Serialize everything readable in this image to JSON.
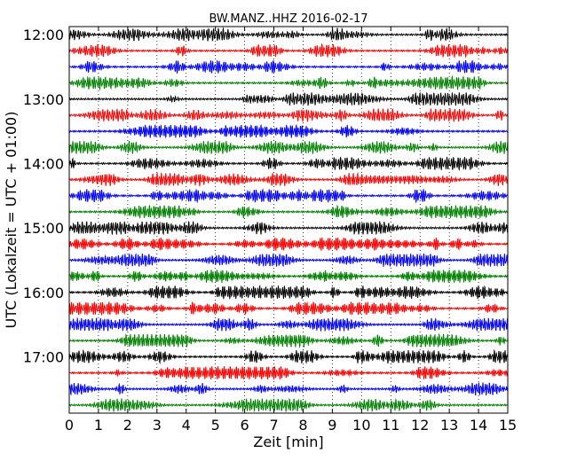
{
  "chart_data": {
    "type": "line",
    "title": "BW.MANZ..HHZ 2016-02-17",
    "xlabel": "Zeit  [min]",
    "ylabel": "UTC (Lokalzeit = UTC + 01:00)",
    "xlim": [
      0,
      15
    ],
    "x_ticks": [
      "0",
      "1",
      "2",
      "3",
      "4",
      "5",
      "6",
      "7",
      "8",
      "9",
      "10",
      "11",
      "12",
      "13",
      "14",
      "15"
    ],
    "y_ticks": [
      "12:00",
      "13:00",
      "14:00",
      "15:00",
      "16:00",
      "17:00"
    ],
    "grid": "vertical dotted",
    "trace_colors": [
      "#000000",
      "#ff0000",
      "#0000ff",
      "#008000"
    ],
    "series": [
      {
        "start": "12:00"
      },
      {
        "start": "12:15"
      },
      {
        "start": "12:30"
      },
      {
        "start": "12:45"
      },
      {
        "start": "13:00"
      },
      {
        "start": "13:15"
      },
      {
        "start": "13:30"
      },
      {
        "start": "13:45"
      },
      {
        "start": "14:00"
      },
      {
        "start": "14:15"
      },
      {
        "start": "14:30"
      },
      {
        "start": "14:45"
      },
      {
        "start": "15:00"
      },
      {
        "start": "15:15"
      },
      {
        "start": "15:30"
      },
      {
        "start": "15:45"
      },
      {
        "start": "16:00"
      },
      {
        "start": "16:15"
      },
      {
        "start": "16:30"
      },
      {
        "start": "16:45"
      },
      {
        "start": "17:00"
      },
      {
        "start": "17:15"
      },
      {
        "start": "17:30"
      },
      {
        "start": "17:45"
      }
    ]
  }
}
